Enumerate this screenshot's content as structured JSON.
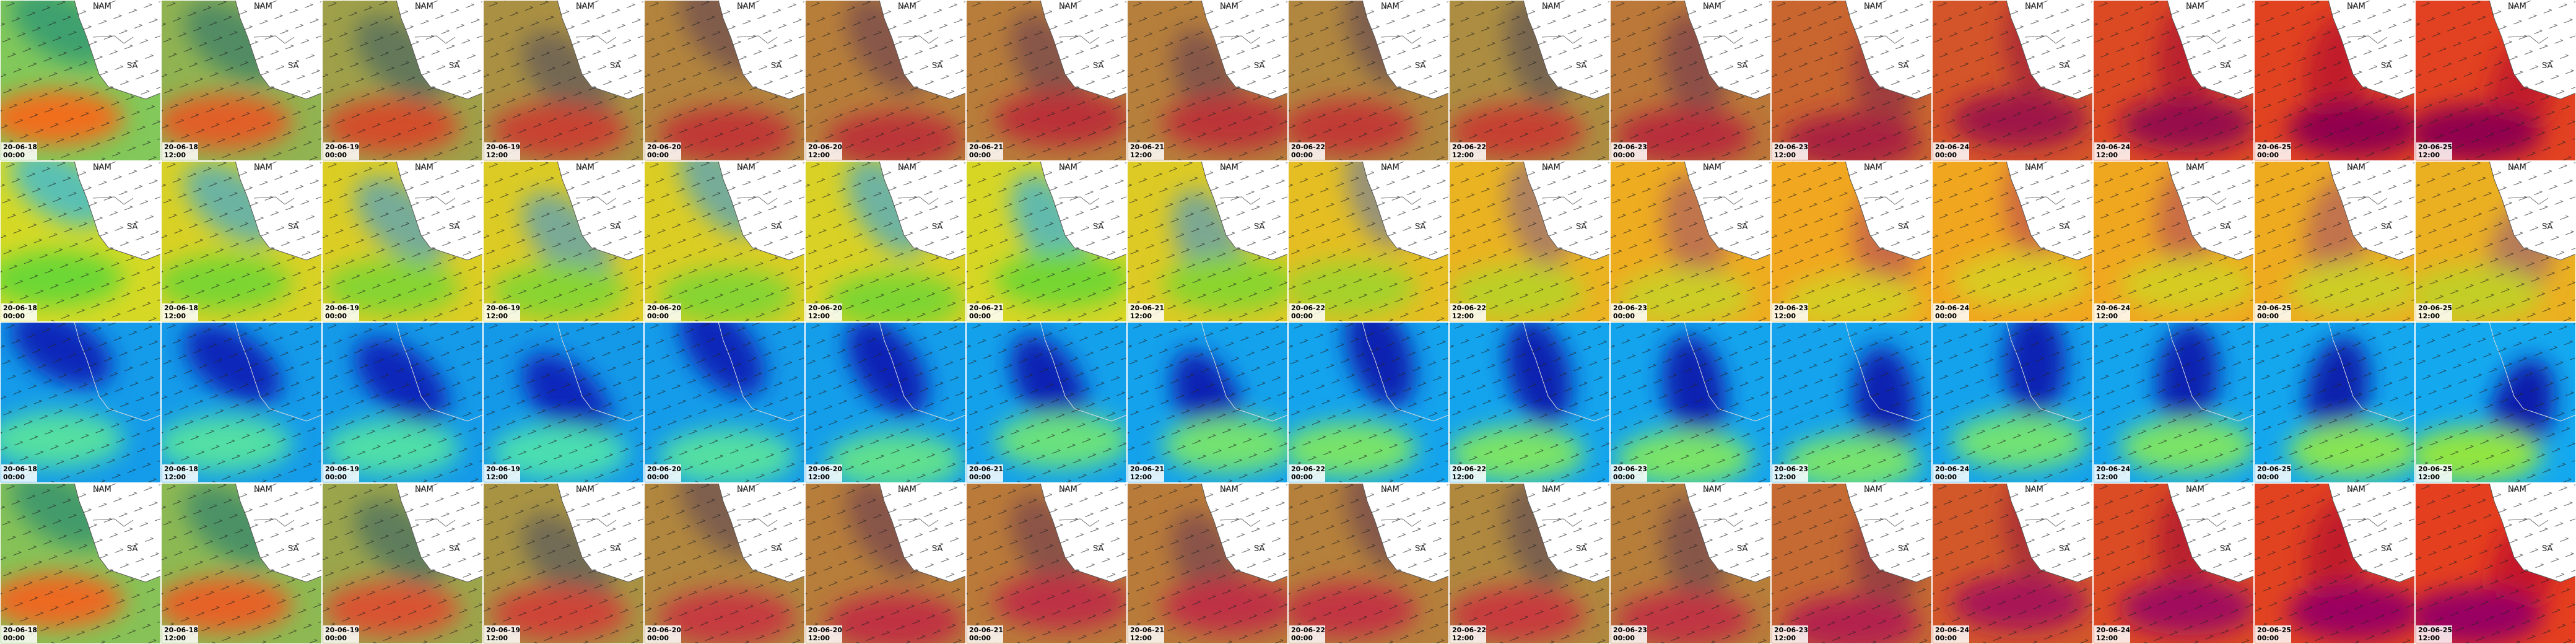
{
  "columns": [
    {
      "date": "20-06-18",
      "time": "00:00"
    },
    {
      "date": "20-06-18",
      "time": "12:00"
    },
    {
      "date": "20-06-19",
      "time": "00:00"
    },
    {
      "date": "20-06-19",
      "time": "12:00"
    },
    {
      "date": "20-06-20",
      "time": "00:00"
    },
    {
      "date": "20-06-20",
      "time": "12:00"
    },
    {
      "date": "20-06-21",
      "time": "00:00"
    },
    {
      "date": "20-06-21",
      "time": "12:00"
    },
    {
      "date": "20-06-22",
      "time": "00:00"
    },
    {
      "date": "20-06-22",
      "time": "12:00"
    },
    {
      "date": "20-06-23",
      "time": "00:00"
    },
    {
      "date": "20-06-23",
      "time": "12:00"
    },
    {
      "date": "20-06-24",
      "time": "00:00"
    },
    {
      "date": "20-06-24",
      "time": "12:00"
    },
    {
      "date": "20-06-25",
      "time": "00:00"
    },
    {
      "date": "20-06-25",
      "time": "12:00"
    }
  ],
  "map_labels": {
    "namibia": "NAM",
    "south_africa": "SA"
  }
}
